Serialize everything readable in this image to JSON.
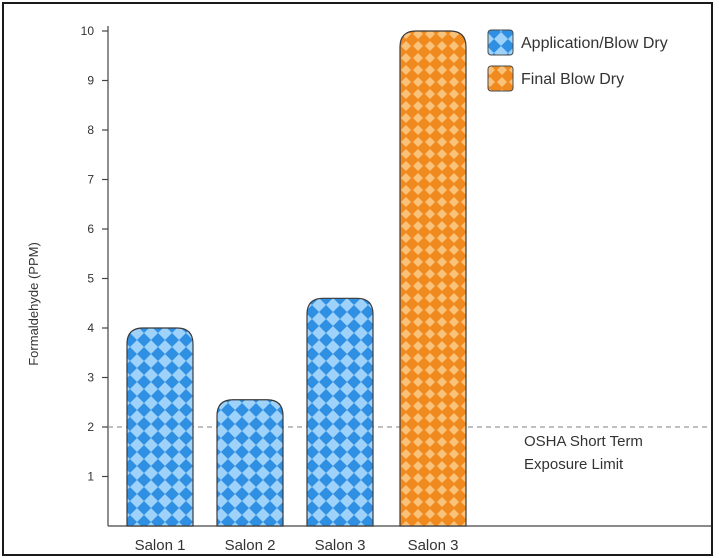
{
  "chart_data": {
    "type": "bar",
    "ylabel": "Formaldehyde (PPM)",
    "xlabel": "",
    "title": "",
    "ylim": [
      0,
      10
    ],
    "yticks": [
      1,
      2,
      3,
      4,
      5,
      6,
      7,
      8,
      9,
      10
    ],
    "categories": [
      "Salon 1",
      "Salon 2",
      "Salon 3",
      "Salon 3"
    ],
    "values": [
      4.0,
      2.55,
      4.6,
      10.0
    ],
    "bar_series": [
      "Application/Blow Dry",
      "Application/Blow Dry",
      "Application/Blow Dry",
      "Final Blow Dry"
    ],
    "series": [
      {
        "name": "Application/Blow Dry",
        "color": "#3d9be9"
      },
      {
        "name": "Final Blow Dry",
        "color": "#f08a1e"
      }
    ],
    "reference_line": {
      "y": 2,
      "label_line1": "OSHA Short Term",
      "label_line2": "Exposure Limit",
      "style": "dashed"
    },
    "legend_position": "top-right",
    "grid": false
  }
}
